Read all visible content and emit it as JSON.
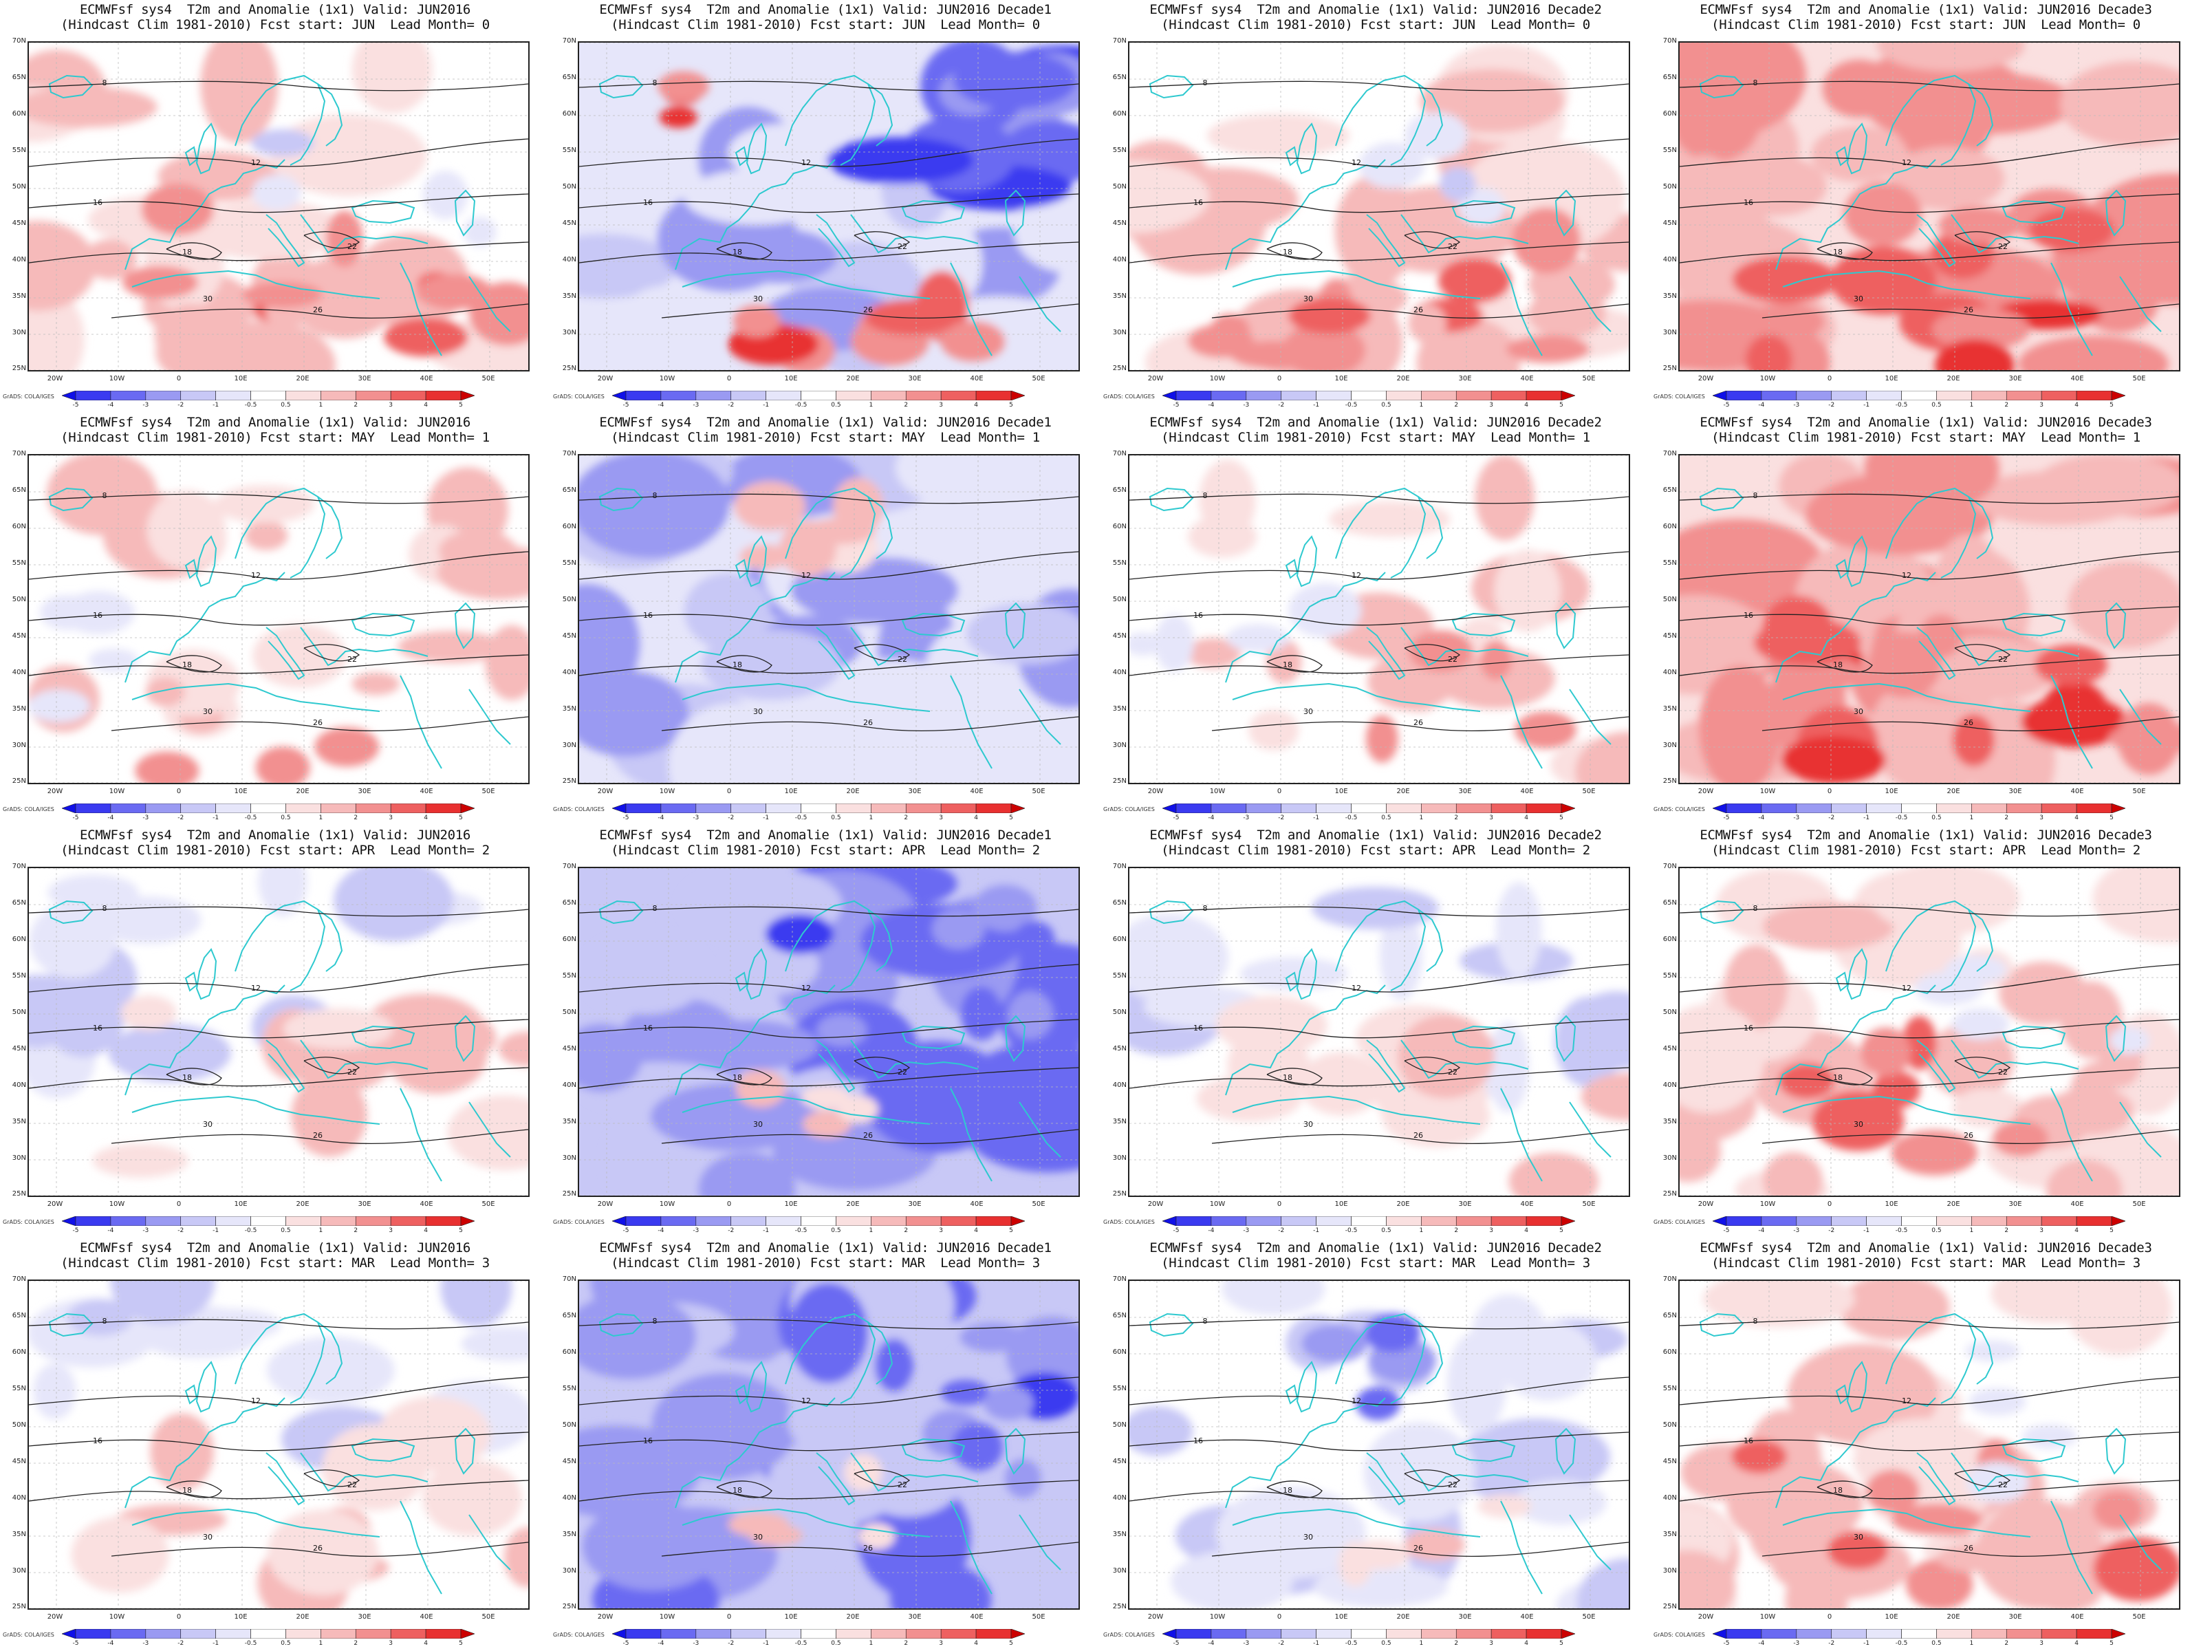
{
  "colorbar": {
    "labels": [
      "-5",
      "-4",
      "-3",
      "-2",
      "-1",
      "-0.5",
      "0.5",
      "1",
      "2",
      "3",
      "4",
      "5"
    ],
    "colors": [
      "#1010e8",
      "#3a3af0",
      "#6a6af2",
      "#9a9af2",
      "#c8c8f6",
      "#e6e6fa",
      "#ffffff",
      "#fae0e0",
      "#f6baba",
      "#f29090",
      "#ee6060",
      "#e83030",
      "#cc0000"
    ]
  },
  "map_axes": {
    "lat_labels": [
      "70N",
      "65N",
      "60N",
      "55N",
      "50N",
      "45N",
      "40N",
      "35N",
      "30N",
      "25N"
    ],
    "lon_labels": [
      "20W",
      "10W",
      "0",
      "10E",
      "20E",
      "30E",
      "40E",
      "50E"
    ]
  },
  "credit": "GrADS: COLA/IGES",
  "panels": [
    {
      "title1": "ECMWFsf sys4  T2m and Anomalie (1x1) Valid: JUN2016",
      "title2": "(Hindcast Clim 1981-2010) Fcst start: JUN  Lead Month= 0",
      "anomaly": "warm-moderate"
    },
    {
      "title1": "ECMWFsf sys4  T2m and Anomalie (1x1) Valid: JUN2016 Decade1",
      "title2": "(Hindcast Clim 1981-2010) Fcst start: JUN  Lead Month= 0",
      "anomaly": "cold-east-warm-south"
    },
    {
      "title1": "ECMWFsf sys4  T2m and Anomalie (1x1) Valid: JUN2016 Decade2",
      "title2": "(Hindcast Clim 1981-2010) Fcst start: JUN  Lead Month= 0",
      "anomaly": "warm-moderate"
    },
    {
      "title1": "ECMWFsf sys4  T2m and Anomalie (1x1) Valid: JUN2016 Decade3",
      "title2": "(Hindcast Clim 1981-2010) Fcst start: JUN  Lead Month= 0",
      "anomaly": "warm-strong"
    },
    {
      "title1": "ECMWFsf sys4  T2m and Anomalie (1x1) Valid: JUN2016",
      "title2": "(Hindcast Clim 1981-2010) Fcst start: MAY  Lead Month= 1",
      "anomaly": "warm-weak"
    },
    {
      "title1": "ECMWFsf sys4  T2m and Anomalie (1x1) Valid: JUN2016 Decade1",
      "title2": "(Hindcast Clim 1981-2010) Fcst start: MAY  Lead Month= 1",
      "anomaly": "cold-moderate"
    },
    {
      "title1": "ECMWFsf sys4  T2m and Anomalie (1x1) Valid: JUN2016 Decade2",
      "title2": "(Hindcast Clim 1981-2010) Fcst start: MAY  Lead Month= 1",
      "anomaly": "warm-weak"
    },
    {
      "title1": "ECMWFsf sys4  T2m and Anomalie (1x1) Valid: JUN2016 Decade3",
      "title2": "(Hindcast Clim 1981-2010) Fcst start: MAY  Lead Month= 1",
      "anomaly": "warm-strong"
    },
    {
      "title1": "ECMWFsf sys4  T2m and Anomalie (1x1) Valid: JUN2016",
      "title2": "(Hindcast Clim 1981-2010) Fcst start: APR  Lead Month= 2",
      "anomaly": "mixed-weak"
    },
    {
      "title1": "ECMWFsf sys4  T2m and Anomalie (1x1) Valid: JUN2016 Decade1",
      "title2": "(Hindcast Clim 1981-2010) Fcst start: APR  Lead Month= 2",
      "anomaly": "cold-strong"
    },
    {
      "title1": "ECMWFsf sys4  T2m and Anomalie (1x1) Valid: JUN2016 Decade2",
      "title2": "(Hindcast Clim 1981-2010) Fcst start: APR  Lead Month= 2",
      "anomaly": "mixed-weak"
    },
    {
      "title1": "ECMWFsf sys4  T2m and Anomalie (1x1) Valid: JUN2016 Decade3",
      "title2": "(Hindcast Clim 1981-2010) Fcst start: APR  Lead Month= 2",
      "anomaly": "warm-moderate"
    },
    {
      "title1": "ECMWFsf sys4  T2m and Anomalie (1x1) Valid: JUN2016",
      "title2": "(Hindcast Clim 1981-2010) Fcst start: MAR  Lead Month= 3",
      "anomaly": "mixed-weak"
    },
    {
      "title1": "ECMWFsf sys4  T2m and Anomalie (1x1) Valid: JUN2016 Decade1",
      "title2": "(Hindcast Clim 1981-2010) Fcst start: MAR  Lead Month= 3",
      "anomaly": "cold-strong"
    },
    {
      "title1": "ECMWFsf sys4  T2m and Anomalie (1x1) Valid: JUN2016 Decade2",
      "title2": "(Hindcast Clim 1981-2010) Fcst start: MAR  Lead Month= 3",
      "anomaly": "cold-weak"
    },
    {
      "title1": "ECMWFsf sys4  T2m and Anomalie (1x1) Valid: JUN2016 Decade3",
      "title2": "(Hindcast Clim 1981-2010) Fcst start: MAR  Lead Month= 3",
      "anomaly": "warm-moderate"
    }
  ]
}
